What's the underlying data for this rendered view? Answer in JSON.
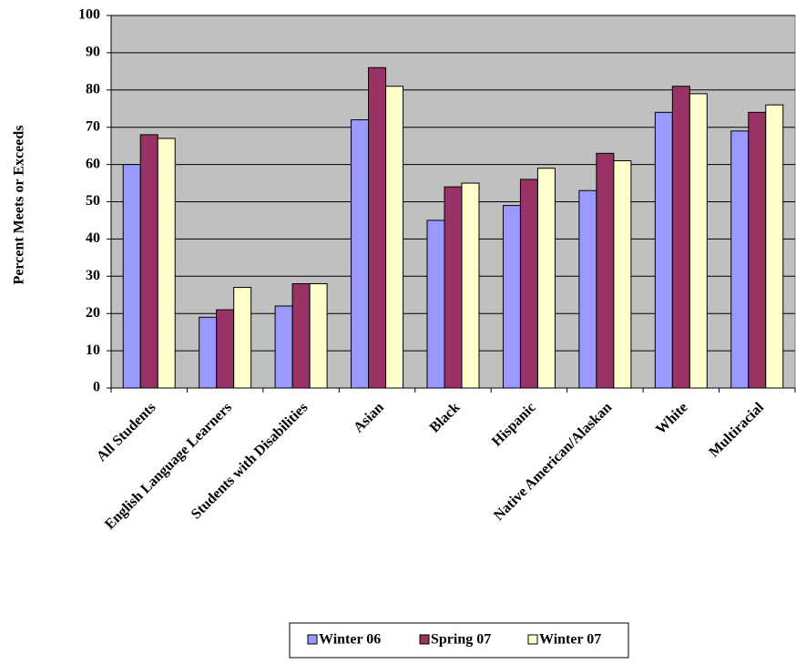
{
  "chart_data": {
    "type": "bar",
    "title": "",
    "xlabel": "",
    "ylabel": "Percent Meets or Exceeds",
    "ylim": [
      0,
      100
    ],
    "ytick_step": 10,
    "grid": true,
    "plot_background": "#c0c0c0",
    "legend_position": "bottom",
    "categories": [
      "All Students",
      "English Language Learners",
      "Students with Disabilities",
      "Asian",
      "Black",
      "Hispanic",
      "Native American/Alaskan",
      "White",
      "Multiracial"
    ],
    "series": [
      {
        "name": "Winter 06",
        "color": "#9999ff",
        "values": [
          60,
          19,
          22,
          72,
          45,
          49,
          53,
          74,
          69
        ]
      },
      {
        "name": "Spring 07",
        "color": "#993366",
        "values": [
          68,
          21,
          28,
          86,
          54,
          56,
          63,
          81,
          74
        ]
      },
      {
        "name": "Winter 07",
        "color": "#ffffcc",
        "values": [
          67,
          27,
          28,
          81,
          55,
          59,
          61,
          79,
          76
        ]
      }
    ]
  }
}
